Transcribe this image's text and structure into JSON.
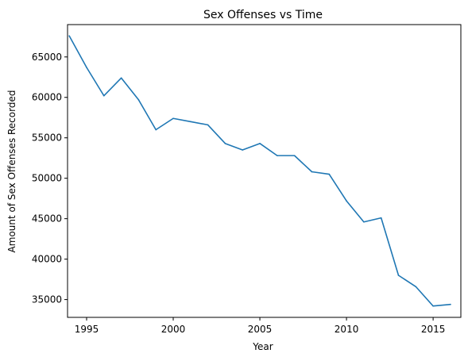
{
  "chart_data": {
    "type": "line",
    "title": "Sex Offenses vs Time",
    "xlabel": "Year",
    "ylabel": "Amount of Sex Offenses Recorded",
    "xlim": [
      1993.9,
      2016.6
    ],
    "ylim": [
      32800,
      69000
    ],
    "x_ticks": [
      1995,
      2000,
      2005,
      2010,
      2015
    ],
    "y_ticks": [
      35000,
      40000,
      45000,
      50000,
      55000,
      60000,
      65000
    ],
    "grid": false,
    "legend": "none",
    "series": [
      {
        "color": "#1f77b4",
        "x": [
          1994,
          1995,
          1996,
          1997,
          1998,
          1999,
          2000,
          2001,
          2002,
          2003,
          2004,
          2005,
          2006,
          2007,
          2008,
          2009,
          2010,
          2011,
          2012,
          2013,
          2014,
          2015,
          2016
        ],
        "values": [
          67600,
          63700,
          60200,
          62400,
          59700,
          56000,
          57400,
          57000,
          56600,
          54300,
          53500,
          54300,
          52800,
          52800,
          50800,
          50500,
          47200,
          44600,
          45100,
          38000,
          36600,
          34200,
          34400
        ]
      }
    ]
  }
}
